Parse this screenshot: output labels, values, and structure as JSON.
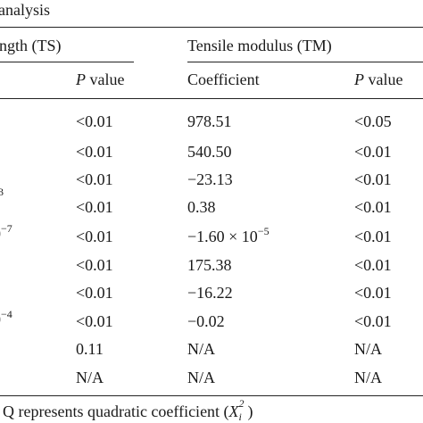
{
  "table": {
    "caption_fragment": "analysis",
    "group_headers": {
      "ts": "ngth (TS)",
      "tm": "Tensile modulus (TM)"
    },
    "subheaders": {
      "p_value_italic": "P",
      "p_value_rest": " value",
      "coefficient": "Coefficient"
    },
    "left_fragments": [
      "3",
      "−7",
      "−4"
    ],
    "rows": [
      {
        "ts_p": "<0.01",
        "tm_coef": "978.51",
        "tm_p": "<0.05"
      },
      {
        "ts_p": "<0.01",
        "tm_coef": "540.50",
        "tm_p": "<0.01"
      },
      {
        "ts_p": "<0.01",
        "tm_coef": "−23.13",
        "tm_p": "<0.01"
      },
      {
        "ts_p": "<0.01",
        "tm_coef": "0.38",
        "tm_p": "<0.01"
      },
      {
        "ts_p": "<0.01",
        "tm_coef_base": "−1.60 × 10",
        "tm_coef_exp": "−5",
        "tm_p": "<0.01"
      },
      {
        "ts_p": "<0.01",
        "tm_coef": "175.38",
        "tm_p": "<0.01"
      },
      {
        "ts_p": "<0.01",
        "tm_coef": "−16.22",
        "tm_p": "<0.01"
      },
      {
        "ts_p": "<0.01",
        "tm_coef": "−0.02",
        "tm_p": "<0.01"
      },
      {
        "ts_p": "0.11",
        "tm_coef": "N/A",
        "tm_p": "N/A"
      },
      {
        "ts_p": "N/A",
        "tm_coef": "N/A",
        "tm_p": "N/A"
      }
    ],
    "footnote": {
      "text": "Q represents quadratic coefficient (",
      "symbol": "X",
      "sup": "2",
      "sub": "i",
      "close": ")"
    }
  }
}
